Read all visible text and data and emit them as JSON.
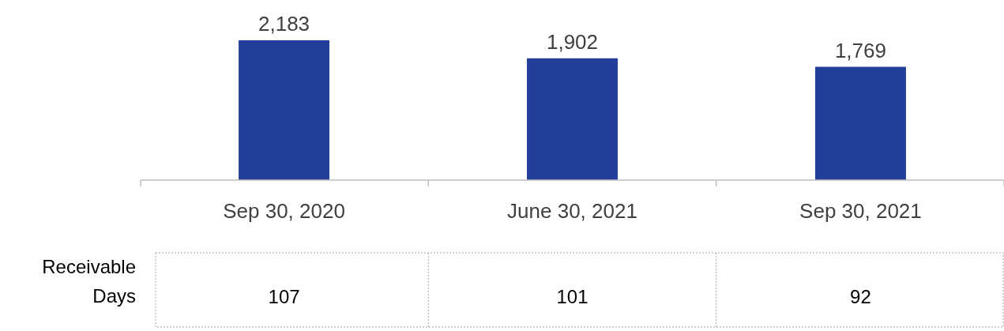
{
  "chart_data": {
    "type": "bar",
    "categories": [
      "Sep 30, 2020",
      "June 30, 2021",
      "Sep 30, 2021"
    ],
    "values": [
      2183,
      1902,
      1769
    ],
    "value_labels": [
      "2,183",
      "1,902",
      "1,769"
    ],
    "color": "#233f99",
    "annotations": [
      "Receivable Days",
      "107",
      "101",
      "92"
    ]
  }
}
